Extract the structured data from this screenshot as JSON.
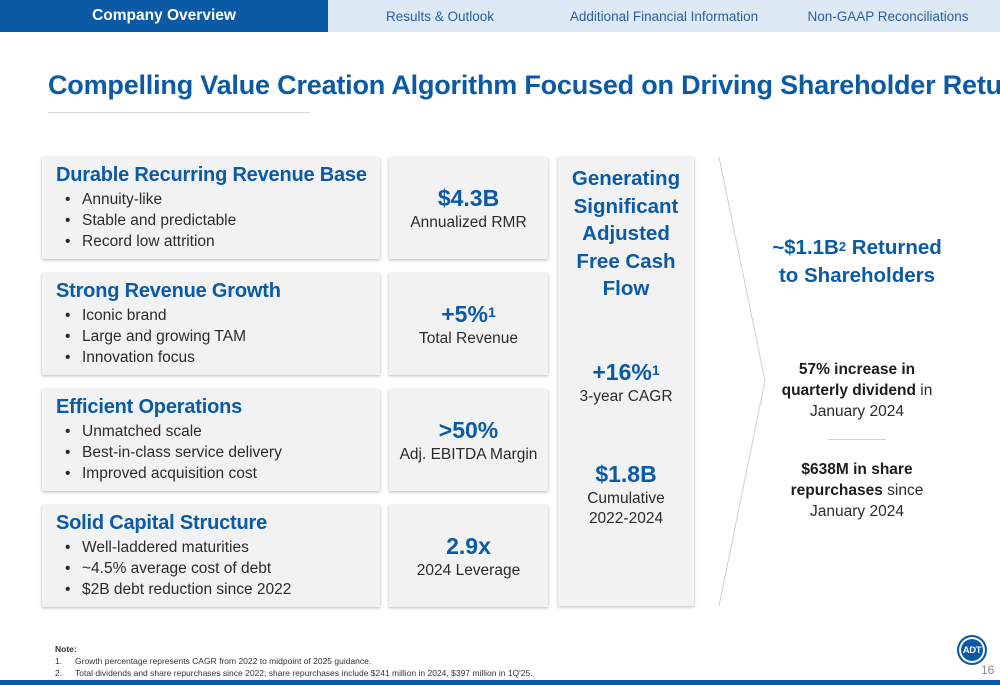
{
  "nav": {
    "tabs": [
      {
        "label": "Company Overview",
        "active": true
      },
      {
        "label": "Results & Outlook",
        "active": false
      },
      {
        "label": "Additional Financial Information",
        "active": false
      },
      {
        "label": "Non-GAAP Reconciliations",
        "active": false
      }
    ]
  },
  "title": "Compelling Value Creation Algorithm Focused on Driving Shareholder Returns",
  "pillars": [
    {
      "heading": "Durable Recurring Revenue Base",
      "bullets": [
        "Annuity-like",
        "Stable and predictable",
        "Record low attrition"
      ],
      "metric": "$4.3B",
      "metric_sup": "",
      "metric_label": "Annualized RMR"
    },
    {
      "heading": "Strong Revenue Growth",
      "bullets": [
        "Iconic brand",
        "Large and growing TAM",
        "Innovation focus"
      ],
      "metric": "+5%",
      "metric_sup": "1",
      "metric_label": "Total Revenue"
    },
    {
      "heading": "Efficient Operations",
      "bullets": [
        "Unmatched scale",
        "Best-in-class service delivery",
        "Improved acquisition cost"
      ],
      "metric": ">50%",
      "metric_sup": "",
      "metric_label": "Adj. EBITDA Margin"
    },
    {
      "heading": "Solid Capital Structure",
      "bullets": [
        "Well-laddered maturities",
        "~4.5% average cost of debt",
        "$2B debt reduction since 2022"
      ],
      "metric": "2.9x",
      "metric_sup": "",
      "metric_label": "2024 Leverage"
    }
  ],
  "fcf": {
    "heading_lines": [
      "Generating",
      "Significant",
      "Adjusted",
      "Free Cash",
      "Flow"
    ],
    "metric1": "+16%",
    "metric1_sup": "1",
    "metric1_label": "3-year CAGR",
    "metric2": "$1.8B",
    "metric2_label_line1": "Cumulative",
    "metric2_label_line2": "2022-2024"
  },
  "returns": {
    "heading_pre": "~$1.1B",
    "heading_sup": "2",
    "heading_post": " Returned",
    "heading_line2": "to Shareholders",
    "item1_bold_line1": "57% increase in",
    "item1_bold_line2": "quarterly dividend",
    "item1_rest": " in",
    "item1_line3": "January 2024",
    "item2_bold_line1": "$638M in share",
    "item2_bold_line2": "repurchases",
    "item2_rest": " since",
    "item2_line3": "January 2024"
  },
  "notes": {
    "title": "Note:",
    "items": [
      {
        "num": "1.",
        "text": "Growth percentage represents CAGR from 2022 to midpoint of 2025 guidance."
      },
      {
        "num": "2.",
        "text": "Total dividends and share repurchases since 2022; share repurchases include $241 million in 2024, $397 million in 1Q'25."
      }
    ]
  },
  "logo_text": "ADT",
  "page_number": "16",
  "colors": {
    "brand_blue": "#0a5aa6",
    "nav_bg": "#dde9f5",
    "box_bg": "#f2f2f2"
  }
}
